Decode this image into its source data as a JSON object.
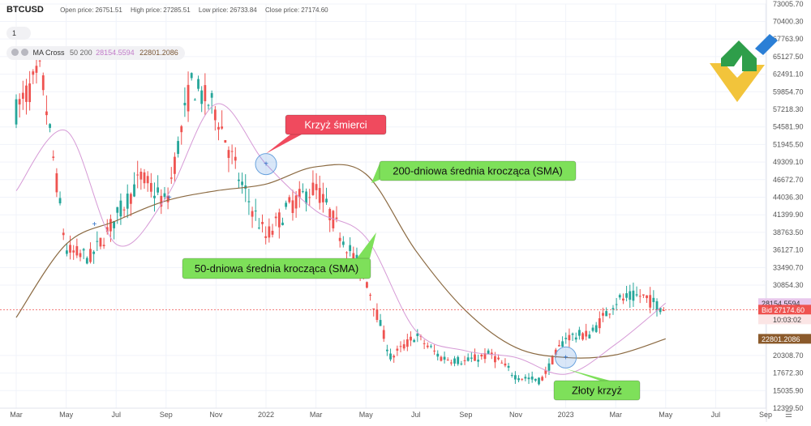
{
  "header": {
    "symbol": "BTCUSD",
    "open_label": "Open price:",
    "open": "26751.51",
    "high_label": "High price:",
    "high": "27285.51",
    "low_label": "Low price:",
    "low": "26733.84",
    "close_label": "Close price:",
    "close": "27174.60"
  },
  "interval": "1",
  "indicator": {
    "name": "MA Cross",
    "params": "50 200",
    "sma50": "28154.5594",
    "sma200": "22801.2086"
  },
  "price_axis": {
    "ticks": [
      "73005.70",
      "70400.30",
      "67763.90",
      "65127.50",
      "62491.10",
      "59854.70",
      "57218.30",
      "54581.90",
      "51945.50",
      "49309.10",
      "46672.70",
      "44036.30",
      "41399.90",
      "38763.50",
      "36127.10",
      "33490.70",
      "30854.30",
      "28154.5594",
      "10:03:02",
      "20308.70",
      "17672.30",
      "15035.90",
      "12399.50"
    ],
    "bid_label": "Bid 27174.60",
    "sma50_tag": "28154.5594",
    "sma200_tag": "22801.2086",
    "countdown": "10:03:02"
  },
  "time_axis": {
    "labels": [
      "Mar",
      "May",
      "Jul",
      "Sep",
      "Nov",
      "2022",
      "Mar",
      "May",
      "Jul",
      "Sep",
      "Nov",
      "2023",
      "Mar",
      "May",
      "Jul",
      "Sep"
    ]
  },
  "callouts": {
    "death_cross": "Krzyż śmierci",
    "sma200": "200-dniowa średnia krocząca (SMA)",
    "sma50": "50-dniowa średnia krocząca (SMA)",
    "golden_cross": "Złoty krzyż"
  },
  "colors": {
    "up": "#26a69a",
    "down": "#ef5350",
    "sma50": "#d69ad6",
    "sma200": "#8b6a42",
    "death_cross": "#f04a5e",
    "callout": "#7ee05a",
    "bid": "#ef5350"
  },
  "chart_data": {
    "type": "line",
    "title": "BTCUSD",
    "series": [
      {
        "name": "MA Cross 50 (SMA)",
        "x": [
          "2021-03",
          "2021-05",
          "2021-07",
          "2021-09",
          "2021-11",
          "2022-01",
          "2022-03",
          "2022-05",
          "2022-07",
          "2022-09",
          "2022-11",
          "2023-01",
          "2023-03",
          "2023-05"
        ],
        "values": [
          45000,
          54000,
          37000,
          44000,
          58000,
          49000,
          42000,
          38000,
          24000,
          21000,
          20000,
          17500,
          22000,
          28154.5594
        ]
      },
      {
        "name": "MA Cross 200 (SMA)",
        "x": [
          "2021-03",
          "2021-05",
          "2021-07",
          "2021-09",
          "2021-11",
          "2022-01",
          "2022-03",
          "2022-05",
          "2022-07",
          "2022-09",
          "2022-11",
          "2023-01",
          "2023-03",
          "2023-05"
        ],
        "values": [
          26000,
          37000,
          40500,
          43500,
          45000,
          46000,
          48600,
          47500,
          36000,
          27000,
          21500,
          20000,
          20400,
          22801.2086
        ]
      },
      {
        "name": "BTCUSD price",
        "x": [
          "2021-03",
          "2021-04",
          "2021-05",
          "2021-06",
          "2021-07",
          "2021-08",
          "2021-09",
          "2021-10",
          "2021-11",
          "2021-12",
          "2022-01",
          "2022-02",
          "2022-03",
          "2022-04",
          "2022-05",
          "2022-06",
          "2022-07",
          "2022-08",
          "2022-09",
          "2022-10",
          "2022-11",
          "2022-12",
          "2023-01",
          "2023-02",
          "2023-03",
          "2023-04",
          "2023-05"
        ],
        "values": [
          57000,
          63000,
          36000,
          35000,
          41000,
          47000,
          43000,
          61000,
          57000,
          46000,
          38000,
          43000,
          45500,
          38500,
          31800,
          19900,
          23300,
          20000,
          19400,
          20500,
          17200,
          16500,
          23100,
          23500,
          28500,
          29300,
          27174.6
        ]
      }
    ],
    "ylim": [
      12399.5,
      73005.7
    ],
    "yticks": [
      73005.7,
      70400.3,
      67763.9,
      65127.5,
      62491.1,
      59854.7,
      57218.3,
      54581.9,
      51945.5,
      49309.1,
      46672.7,
      44036.3,
      41399.9,
      38763.5,
      36127.1,
      33490.7,
      30854.3,
      20308.7,
      17672.3,
      15035.9,
      12399.5
    ],
    "crosses": [
      {
        "label": "Krzyż śmierci",
        "x": "2022-01",
        "value": 49000
      },
      {
        "label": "Złoty krzyż",
        "x": "2023-01",
        "value": 20000
      }
    ]
  }
}
